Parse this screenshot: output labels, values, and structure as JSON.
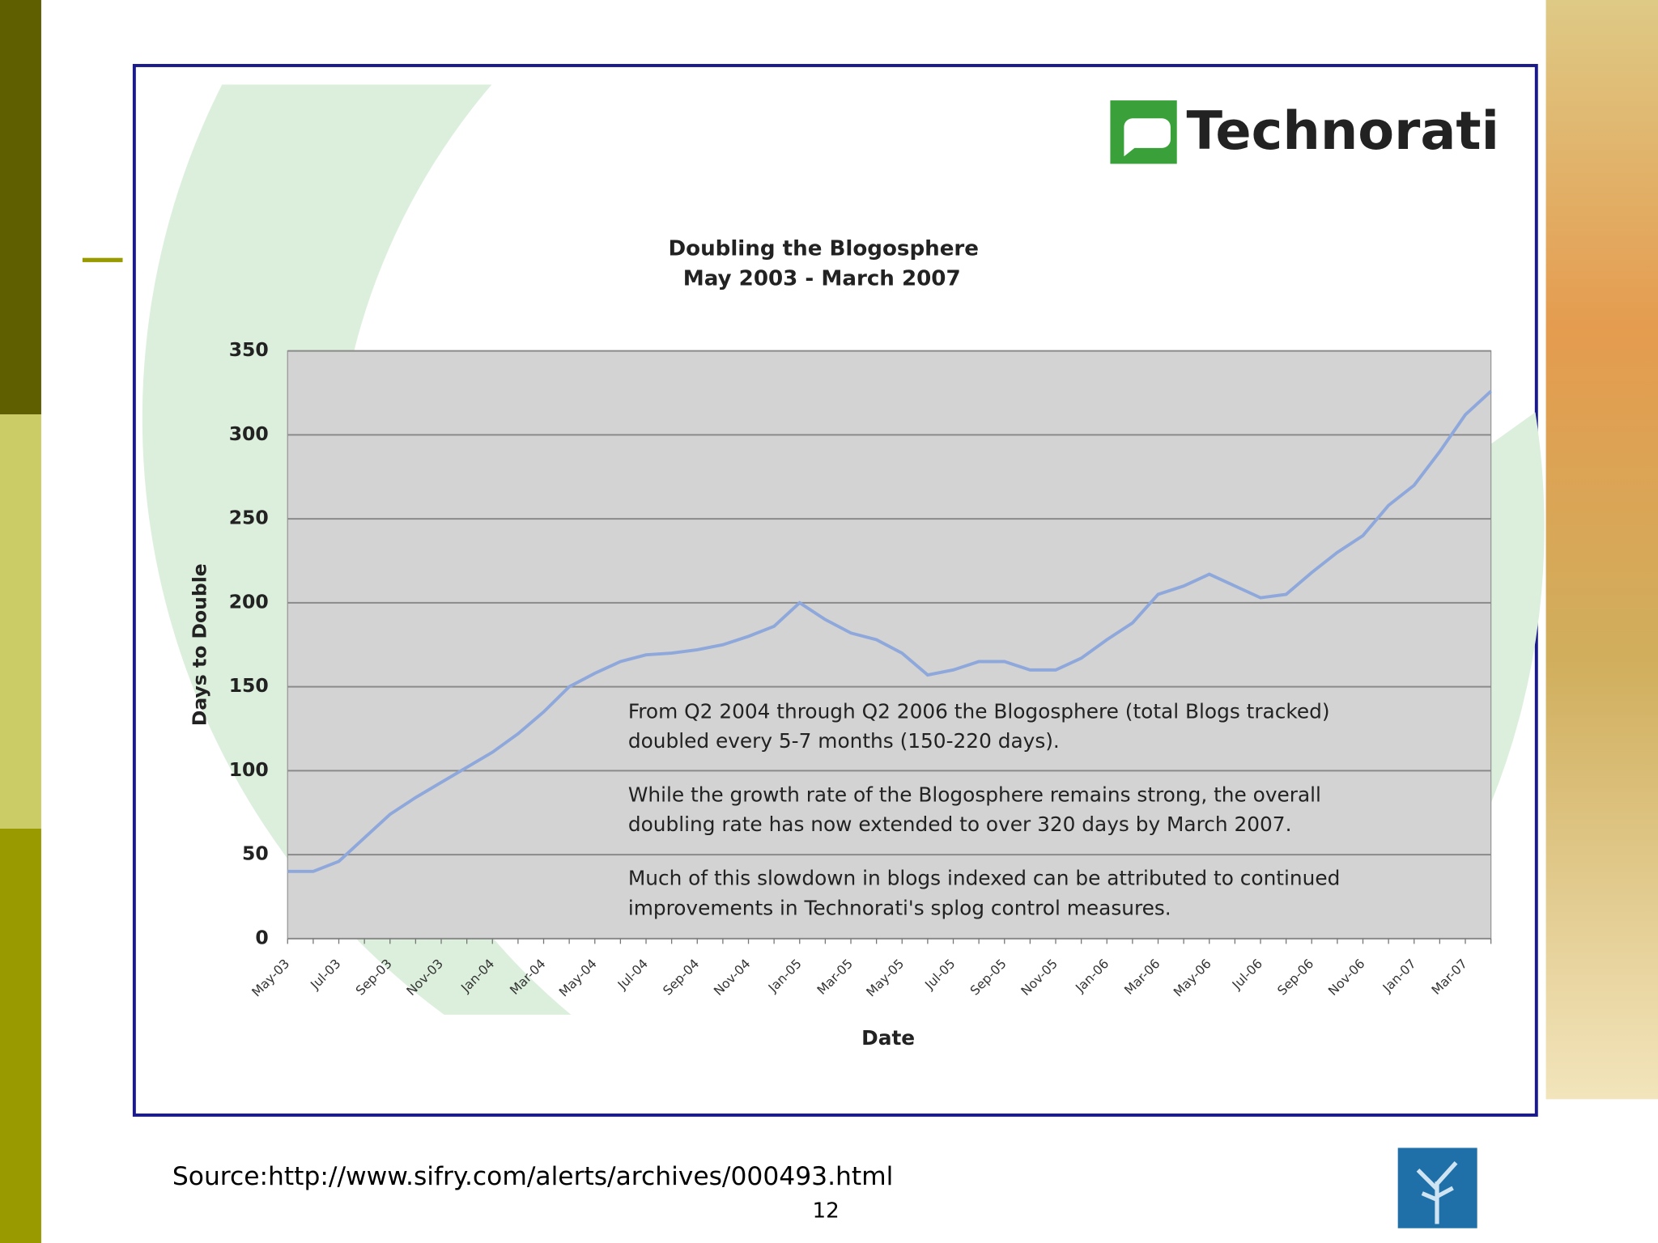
{
  "logo_text": "Technorati",
  "source": "Source:http://www.sifry.com/alerts/archives/000493.html",
  "page_number": "12",
  "chart_data": {
    "type": "line",
    "title": [
      "Doubling the Blogosphere",
      "May 2003 - March 2007"
    ],
    "x_label": "Date",
    "y_label": "Days to Double",
    "categories": [
      "May-03",
      null,
      "Jul-03",
      null,
      "Sep-03",
      null,
      "Nov-03",
      null,
      "Jan-04",
      null,
      "Mar-04",
      null,
      "May-04",
      null,
      "Jul-04",
      null,
      "Sep-04",
      null,
      "Nov-04",
      null,
      "Jan-05",
      null,
      "Mar-05",
      null,
      "May-05",
      null,
      "Jul-05",
      null,
      "Sep-05",
      null,
      "Nov-05",
      null,
      "Jan-06",
      null,
      "Mar-06",
      null,
      "May-06",
      null,
      "Jul-06",
      null,
      "Sep-06",
      null,
      "Nov-06",
      null,
      "Jan-07",
      null,
      "Mar-07",
      null
    ],
    "values": [
      40,
      40,
      46,
      60,
      74,
      84,
      93,
      102,
      111,
      122,
      135,
      150,
      158,
      165,
      169,
      170,
      172,
      175,
      180,
      186,
      200,
      190,
      182,
      178,
      170,
      157,
      160,
      165,
      165,
      160,
      160,
      167,
      178,
      188,
      205,
      210,
      217,
      210,
      203,
      205,
      218,
      230,
      240,
      258,
      270,
      290,
      312,
      326
    ],
    "color": "#8fa8dc",
    "ylim": [
      0,
      350
    ],
    "yticks": [
      0,
      50,
      100,
      150,
      200,
      250,
      300,
      350
    ],
    "grid": true,
    "annotations": [
      [
        "From Q2 2004 through Q2 2006 the Blogosphere (total Blogs tracked)",
        "doubled every 5-7 months (150-220 days)."
      ],
      [
        "While the growth rate of the Blogosphere remains strong, the overall",
        "doubling rate has now extended to over 320 days by March 2007."
      ],
      [
        "Much of this slowdown in blogs indexed can be attributed to continued",
        "improvements in Technorati's splog control measures."
      ]
    ]
  }
}
